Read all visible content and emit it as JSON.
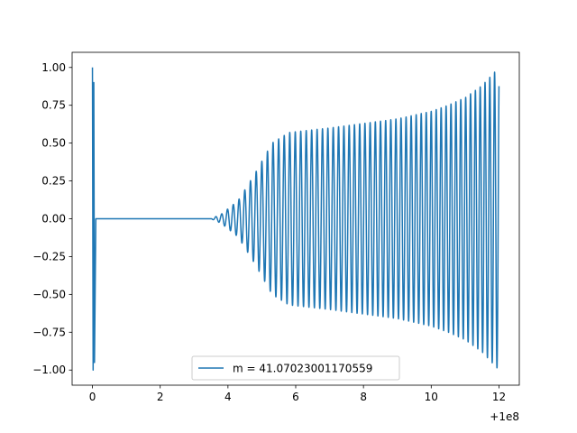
{
  "chart_data": {
    "type": "line",
    "title": "",
    "xlabel": "",
    "ylabel": "",
    "x_offset_label": "+1e8",
    "xlim": [
      -0.6,
      12.6
    ],
    "ylim": [
      -1.1,
      1.1
    ],
    "x_ticks": [
      0,
      2,
      4,
      6,
      8,
      10,
      12
    ],
    "x_tick_labels": [
      "0",
      "2",
      "4",
      "6",
      "8",
      "10",
      "12"
    ],
    "y_ticks": [
      1.0,
      0.75,
      0.5,
      0.25,
      0.0,
      -0.25,
      -0.5,
      -0.75,
      -1.0
    ],
    "y_tick_labels": [
      "1.00",
      "0.75",
      "0.50",
      "0.25",
      "0.00",
      "−0.25",
      "−0.50",
      "−0.75",
      "−1.00"
    ],
    "grid": false,
    "legend_position": "lower center",
    "series": [
      {
        "name": "m = 41.07023001170559",
        "color": "#1f77b4",
        "description_points": {
          "x": [
            0.0,
            0.02,
            0.05,
            0.1,
            0.15,
            3.5,
            3.8,
            4.3,
            4.8,
            5.3,
            5.8,
            6.2,
            7.0,
            8.0,
            9.0,
            10.0,
            10.5,
            11.0,
            11.5,
            12.0
          ],
          "envelope": [
            1.0,
            1.0,
            1.0,
            0.0,
            0.0,
            0.0,
            0.03,
            0.12,
            0.3,
            0.5,
            0.57,
            0.58,
            0.6,
            0.63,
            0.66,
            0.71,
            0.75,
            0.8,
            0.88,
            1.0
          ]
        }
      }
    ]
  }
}
